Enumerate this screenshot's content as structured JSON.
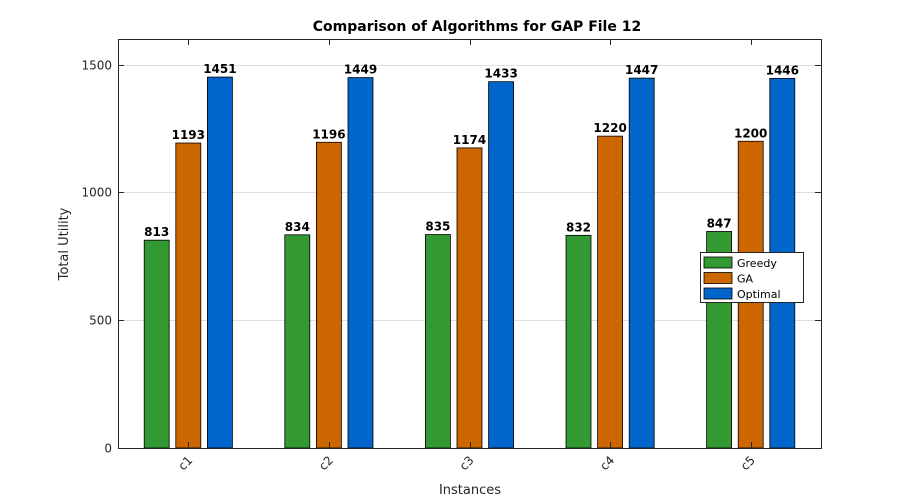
{
  "chart_data": {
    "type": "bar",
    "title": "Comparison of Algorithms for GAP File 12",
    "xlabel": "Instances",
    "ylabel": "Total Utility",
    "categories": [
      "c1",
      "c2",
      "c3",
      "c4",
      "c5"
    ],
    "series": [
      {
        "name": "Greedy",
        "color": "#339933",
        "values": [
          813,
          834,
          835,
          832,
          847
        ]
      },
      {
        "name": "GA",
        "color": "#cc6600",
        "values": [
          1193,
          1196,
          1174,
          1220,
          1200
        ]
      },
      {
        "name": "Optimal",
        "color": "#0066cc",
        "values": [
          1451,
          1449,
          1433,
          1447,
          1446
        ]
      }
    ],
    "ylim": [
      0,
      1600
    ],
    "yticks": [
      0,
      500,
      1000,
      1500
    ],
    "grid": true,
    "legend_position": "right"
  }
}
